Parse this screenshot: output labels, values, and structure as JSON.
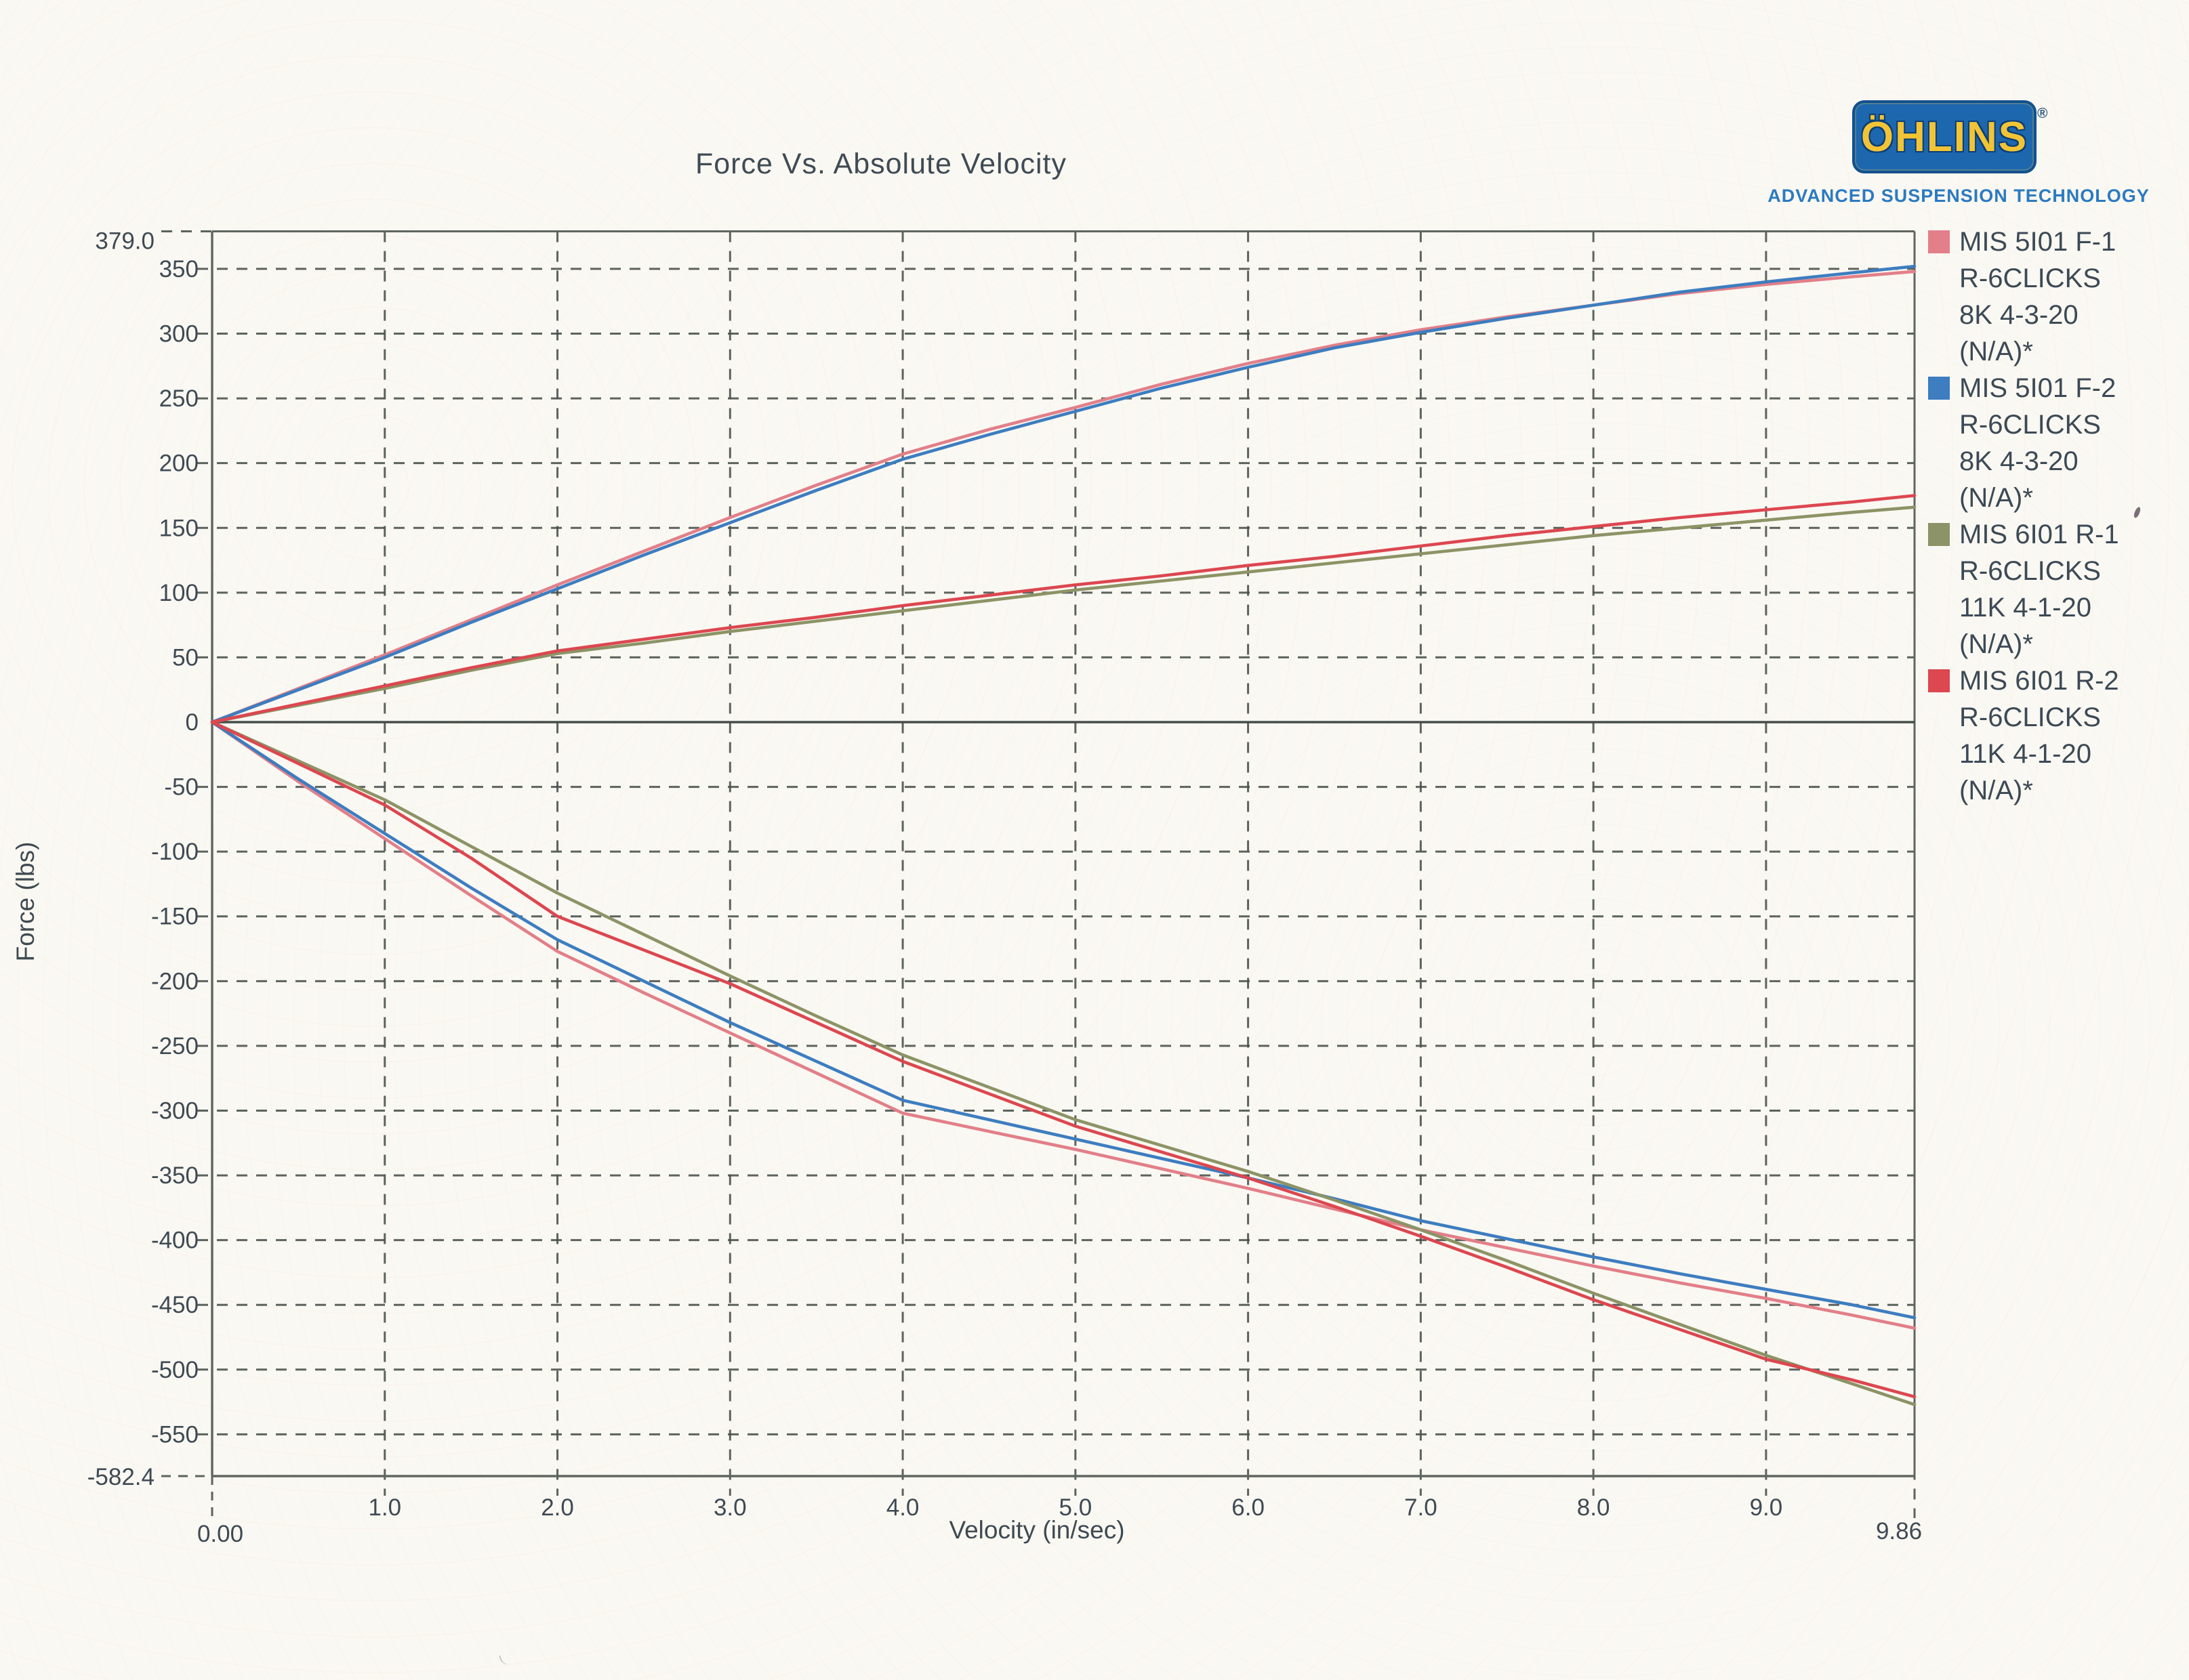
{
  "logo": {
    "brand": "ÖHLINS",
    "registered": "®",
    "tagline": "ADVANCED SUSPENSION TECHNOLOGY"
  },
  "colors": {
    "paper": "#faf8f2",
    "ink": "#3e4a54",
    "grid": "#4b534f",
    "frame": "#5f6560",
    "zero_axis": "#454d49",
    "logo_blue": "#1d67ae",
    "logo_yellow": "#f2c435",
    "tagline_blue": "#2b7ac1"
  },
  "chart_data": {
    "type": "line",
    "title": "Force Vs. Absolute Velocity",
    "xlabel": "Velocity (in/sec)",
    "ylabel": "Force (lbs)",
    "xlim": [
      0,
      9.86
    ],
    "ylim": [
      -582.4,
      379.0
    ],
    "x_tick_labels": [
      "1.0",
      "2.0",
      "3.0",
      "4.0",
      "5.0",
      "6.0",
      "7.0",
      "8.0",
      "9.0"
    ],
    "x_tick_values": [
      1,
      2,
      3,
      4,
      5,
      6,
      7,
      8,
      9
    ],
    "x_edge_labels": {
      "min": "0.00",
      "max": "9.86"
    },
    "y_ticks": [
      350,
      300,
      250,
      200,
      150,
      100,
      50,
      0,
      -50,
      -100,
      -150,
      -200,
      -250,
      -300,
      -350,
      -400,
      -450,
      -500,
      -550
    ],
    "y_edge_labels": {
      "max": "379.0",
      "min": "-582.4"
    },
    "grid": "dashed",
    "legend_position": "right",
    "series": [
      {
        "id": "mis-5i01-f-1",
        "legend_lines": [
          "MIS 5I01 F-1",
          "R-6CLICKS",
          "8K 4-3-20",
          "(N/A)*"
        ],
        "color": "#e27f89",
        "compression": [
          [
            0,
            0
          ],
          [
            0.5,
            26
          ],
          [
            1,
            52
          ],
          [
            1.5,
            79
          ],
          [
            2,
            106
          ],
          [
            2.5,
            132
          ],
          [
            3,
            158
          ],
          [
            3.5,
            183
          ],
          [
            4,
            207
          ],
          [
            4.5,
            226
          ],
          [
            5,
            243
          ],
          [
            5.5,
            261
          ],
          [
            6,
            277
          ],
          [
            6.5,
            291
          ],
          [
            7,
            303
          ],
          [
            7.5,
            313
          ],
          [
            8,
            322
          ],
          [
            8.5,
            331
          ],
          [
            9,
            338
          ],
          [
            9.5,
            344
          ],
          [
            9.86,
            348
          ]
        ],
        "rebound": [
          [
            0,
            0
          ],
          [
            0.5,
            -46
          ],
          [
            1,
            -90
          ],
          [
            1.5,
            -134
          ],
          [
            2,
            -177
          ],
          [
            2.5,
            -209
          ],
          [
            3,
            -240
          ],
          [
            3.5,
            -271
          ],
          [
            4,
            -302
          ],
          [
            4.5,
            -316
          ],
          [
            5,
            -330
          ],
          [
            5.5,
            -345
          ],
          [
            6,
            -360
          ],
          [
            6.5,
            -376
          ],
          [
            7,
            -392
          ],
          [
            7.5,
            -406
          ],
          [
            8,
            -420
          ],
          [
            8.5,
            -433
          ],
          [
            9,
            -445
          ],
          [
            9.5,
            -458
          ],
          [
            9.86,
            -468
          ]
        ]
      },
      {
        "id": "mis-5i01-f-2",
        "legend_lines": [
          "MIS 5I01 F-2",
          "R-6CLICKS",
          "8K 4-3-20",
          "(N/A)*"
        ],
        "color": "#3d7dc0",
        "compression": [
          [
            0,
            0
          ],
          [
            0.5,
            25
          ],
          [
            1,
            50
          ],
          [
            1.5,
            77
          ],
          [
            2,
            103
          ],
          [
            2.5,
            129
          ],
          [
            3,
            154
          ],
          [
            3.5,
            179
          ],
          [
            4,
            203
          ],
          [
            4.5,
            222
          ],
          [
            5,
            240
          ],
          [
            5.5,
            258
          ],
          [
            6,
            274
          ],
          [
            6.5,
            289
          ],
          [
            7,
            301
          ],
          [
            7.5,
            312
          ],
          [
            8,
            322
          ],
          [
            8.5,
            332
          ],
          [
            9,
            340
          ],
          [
            9.5,
            347
          ],
          [
            9.86,
            352
          ]
        ],
        "rebound": [
          [
            0,
            0
          ],
          [
            0.5,
            -44
          ],
          [
            1,
            -86
          ],
          [
            1.5,
            -128
          ],
          [
            2,
            -168
          ],
          [
            2.5,
            -200
          ],
          [
            3,
            -232
          ],
          [
            3.5,
            -262
          ],
          [
            4,
            -292
          ],
          [
            4.5,
            -307
          ],
          [
            5,
            -322
          ],
          [
            5.5,
            -337
          ],
          [
            6,
            -352
          ],
          [
            6.5,
            -368
          ],
          [
            7,
            -385
          ],
          [
            7.5,
            -399
          ],
          [
            8,
            -413
          ],
          [
            8.5,
            -426
          ],
          [
            9,
            -438
          ],
          [
            9.5,
            -450
          ],
          [
            9.86,
            -460
          ]
        ]
      },
      {
        "id": "mis-6i01-r-1",
        "legend_lines": [
          "MIS 6I01 R-1",
          "R-6CLICKS",
          "11K 4-1-20",
          "(N/A)*"
        ],
        "color": "#8c9366",
        "compression": [
          [
            0,
            0
          ],
          [
            0.5,
            13
          ],
          [
            1,
            26
          ],
          [
            1.5,
            40
          ],
          [
            2,
            53
          ],
          [
            2.5,
            61
          ],
          [
            3,
            70
          ],
          [
            3.5,
            78
          ],
          [
            4,
            86
          ],
          [
            4.5,
            94
          ],
          [
            5,
            102
          ],
          [
            5.5,
            109
          ],
          [
            6,
            116
          ],
          [
            6.5,
            123
          ],
          [
            7,
            130
          ],
          [
            7.5,
            137
          ],
          [
            8,
            144
          ],
          [
            8.5,
            150
          ],
          [
            9,
            156
          ],
          [
            9.5,
            162
          ],
          [
            9.86,
            166
          ]
        ],
        "rebound": [
          [
            0,
            0
          ],
          [
            0.5,
            -30
          ],
          [
            1,
            -60
          ],
          [
            1.5,
            -96
          ],
          [
            2,
            -132
          ],
          [
            2.5,
            -164
          ],
          [
            3,
            -196
          ],
          [
            3.5,
            -227
          ],
          [
            4,
            -257
          ],
          [
            4.5,
            -282
          ],
          [
            5,
            -307
          ],
          [
            5.5,
            -327
          ],
          [
            6,
            -347
          ],
          [
            6.5,
            -369
          ],
          [
            7,
            -392
          ],
          [
            7.5,
            -416
          ],
          [
            8,
            -441
          ],
          [
            8.5,
            -465
          ],
          [
            9,
            -489
          ],
          [
            9.5,
            -511
          ],
          [
            9.86,
            -527
          ]
        ]
      },
      {
        "id": "mis-6i01-r-2",
        "legend_lines": [
          "MIS 6I01 R-2",
          "R-6CLICKS",
          "11K 4-1-20",
          "(N/A)*"
        ],
        "color": "#dc4750",
        "compression": [
          [
            0,
            0
          ],
          [
            0.5,
            14
          ],
          [
            1,
            28
          ],
          [
            1.5,
            42
          ],
          [
            2,
            55
          ],
          [
            2.5,
            64
          ],
          [
            3,
            73
          ],
          [
            3.5,
            81
          ],
          [
            4,
            90
          ],
          [
            4.5,
            98
          ],
          [
            5,
            106
          ],
          [
            5.5,
            113
          ],
          [
            6,
            121
          ],
          [
            6.5,
            128
          ],
          [
            7,
            136
          ],
          [
            7.5,
            144
          ],
          [
            8,
            151
          ],
          [
            8.5,
            158
          ],
          [
            9,
            164
          ],
          [
            9.5,
            170
          ],
          [
            9.86,
            175
          ]
        ],
        "rebound": [
          [
            0,
            0
          ],
          [
            0.5,
            -32
          ],
          [
            1,
            -64
          ],
          [
            1.5,
            -105
          ],
          [
            2,
            -150
          ],
          [
            2.5,
            -176
          ],
          [
            3,
            -202
          ],
          [
            3.5,
            -232
          ],
          [
            4,
            -262
          ],
          [
            4.5,
            -287
          ],
          [
            5,
            -312
          ],
          [
            5.5,
            -332
          ],
          [
            6,
            -352
          ],
          [
            6.5,
            -374
          ],
          [
            7,
            -397
          ],
          [
            7.5,
            -421
          ],
          [
            8,
            -446
          ],
          [
            8.5,
            -469
          ],
          [
            9,
            -492
          ],
          [
            9.5,
            -508
          ],
          [
            9.86,
            -521
          ]
        ]
      }
    ]
  }
}
